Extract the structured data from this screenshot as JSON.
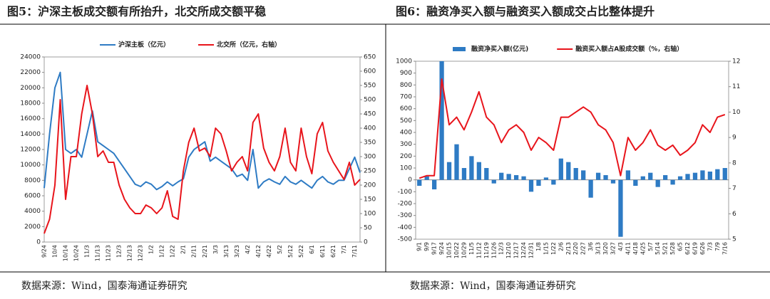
{
  "chart_data": [
    {
      "type": "line",
      "title": "图5：沪深主板成交额有所抬升，北交所成交额平稳",
      "source": "数据来源：Wind，国泰海通证券研究",
      "categories": [
        "9/24",
        null,
        "10/4",
        null,
        "10/14",
        null,
        "10/24",
        null,
        "11/3",
        null,
        "11/13",
        null,
        "11/23",
        null,
        "12/3",
        null,
        "12/13",
        null,
        "12/23",
        null,
        "1/2",
        null,
        "1/12",
        null,
        "1/22",
        null,
        "2/1",
        null,
        "2/11",
        null,
        "2/21",
        null,
        "3/3",
        null,
        "3/13",
        null,
        "3/23",
        null,
        "4/2",
        null,
        "4/12",
        null,
        "4/22",
        null,
        "5/2",
        null,
        "5/12",
        null,
        "5/22",
        null,
        "6/1",
        null,
        "6/11",
        null,
        "6/21",
        null,
        "7/1",
        null,
        "7/11",
        null
      ],
      "series": [
        {
          "name": "沪深主板（亿元）",
          "color": "#2e7bc4",
          "values": [
            7000,
            14000,
            20000,
            22000,
            12000,
            11500,
            12000,
            11000,
            14000,
            17000,
            13000,
            12500,
            12000,
            11500,
            10500,
            9500,
            8500,
            7500,
            7200,
            7800,
            7500,
            6800,
            7200,
            7800,
            7300,
            7800,
            8200,
            11000,
            12000,
            12500,
            13000,
            10500,
            11000,
            10500,
            10000,
            9500,
            8500,
            8800,
            8000,
            12000,
            7000,
            7800,
            8200,
            7800,
            7500,
            8500,
            7800,
            7500,
            8000,
            7500,
            7000,
            8000,
            8500,
            7800,
            7500,
            8000,
            8000,
            9500,
            11000,
            9000
          ]
        },
        {
          "name": "北交所（亿元，右轴）",
          "color": "#e8141b",
          "axis": "y2",
          "values": [
            30,
            80,
            200,
            500,
            150,
            300,
            300,
            450,
            550,
            450,
            300,
            320,
            280,
            280,
            200,
            150,
            120,
            100,
            100,
            130,
            120,
            100,
            120,
            180,
            90,
            80,
            250,
            350,
            400,
            320,
            330,
            300,
            400,
            380,
            320,
            250,
            280,
            300,
            250,
            420,
            450,
            330,
            280,
            250,
            300,
            400,
            280,
            250,
            400,
            300,
            240,
            380,
            420,
            320,
            280,
            250,
            220,
            280,
            200,
            220
          ]
        }
      ],
      "ylim": [
        0,
        24000
      ],
      "yticks": [
        0,
        2000,
        4000,
        6000,
        8000,
        10000,
        12000,
        14000,
        16000,
        18000,
        20000,
        22000,
        24000
      ],
      "y2lim": [
        0,
        650
      ],
      "y2ticks": [
        0,
        50,
        100,
        150,
        200,
        250,
        300,
        350,
        400,
        450,
        500,
        550,
        600,
        650
      ]
    },
    {
      "type": "bar",
      "title": "图6：融资净买入额与融资买入额成交占比整体提升",
      "source": "数据来源：Wind，国泰海通证券研究",
      "categories": [
        "9/1",
        "9/9",
        "9/17",
        "9/24",
        "10/15",
        "10/22",
        "10/29",
        "11/5",
        "11/12",
        "11/19",
        "11/26",
        "12/3",
        "12/10",
        "12/17",
        "12/24",
        "12/31",
        "1/8",
        "1/15",
        "1/22",
        "2/6",
        "2/13",
        "2/20",
        "2/27",
        "3/6",
        "3/13",
        "3/20",
        "3/27",
        "4/3",
        "4/11",
        "4/18",
        "4/25",
        "5/7",
        "5/14",
        "5/21",
        "5/28",
        "6/5",
        "6/12",
        "6/19",
        "6/26",
        "7/3",
        "7/9",
        "7/16"
      ],
      "series": [
        {
          "name": "融资净买入额(亿元)",
          "color": "#2e7bc4",
          "type": "bar",
          "values": [
            -50,
            30,
            -80,
            1000,
            150,
            300,
            100,
            200,
            150,
            100,
            -30,
            60,
            50,
            40,
            30,
            -100,
            -50,
            20,
            -40,
            180,
            150,
            100,
            80,
            -150,
            60,
            40,
            -30,
            -480,
            80,
            -50,
            30,
            60,
            -60,
            40,
            -40,
            30,
            50,
            60,
            80,
            70,
            90,
            100
          ]
        },
        {
          "name": "融资买入额占A股成交额（%，右轴）",
          "color": "#e8141b",
          "type": "line",
          "axis": "y2",
          "values": [
            7.4,
            7.5,
            7.5,
            11.3,
            9.5,
            9.8,
            9.3,
            10.0,
            10.8,
            9.8,
            9.5,
            8.8,
            9.3,
            9.5,
            9.2,
            8.5,
            9.0,
            8.8,
            8.5,
            9.8,
            9.8,
            10.0,
            10.2,
            10.0,
            9.5,
            9.3,
            8.8,
            7.5,
            9.0,
            8.5,
            8.8,
            9.3,
            8.7,
            8.5,
            8.7,
            8.3,
            8.5,
            8.8,
            9.5,
            9.2,
            9.8,
            9.9
          ]
        }
      ],
      "ylim": [
        -500,
        1000
      ],
      "yticks": [
        -500,
        -400,
        -300,
        -200,
        -100,
        0,
        100,
        200,
        300,
        400,
        500,
        600,
        700,
        800,
        900,
        1000
      ],
      "y2lim": [
        5,
        12
      ],
      "y2ticks": [
        5,
        6,
        7,
        8,
        9,
        10,
        11,
        12
      ]
    }
  ]
}
